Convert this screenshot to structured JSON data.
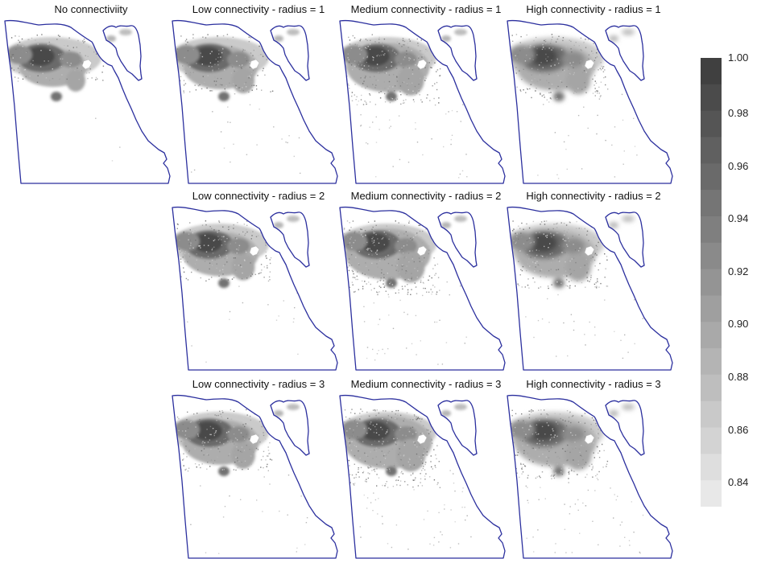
{
  "colors": {
    "outline": "#2b2f9e",
    "background": "#ffffff",
    "scale_high": "#404040",
    "scale_low": "#e6e6e6"
  },
  "panels": [
    {
      "id": "none",
      "title": "No connectiviity",
      "connectivity": "none",
      "radius": null
    },
    {
      "id": "low-r1",
      "title": "Low connectivity - radius = 1",
      "connectivity": "low",
      "radius": 1
    },
    {
      "id": "medium-r1",
      "title": "Medium connectivity - radius = 1",
      "connectivity": "medium",
      "radius": 1
    },
    {
      "id": "high-r1",
      "title": "High connectivity - radius = 1",
      "connectivity": "high",
      "radius": 1
    },
    {
      "id": "low-r2",
      "title": "Low connectivity - radius = 2",
      "connectivity": "low",
      "radius": 2
    },
    {
      "id": "medium-r2",
      "title": "Medium connectivity - radius = 2",
      "connectivity": "medium",
      "radius": 2
    },
    {
      "id": "high-r2",
      "title": "High connectivity - radius = 2",
      "connectivity": "high",
      "radius": 2
    },
    {
      "id": "low-r3",
      "title": "Low connectivity - radius = 3",
      "connectivity": "low",
      "radius": 3
    },
    {
      "id": "medium-r3",
      "title": "Medium connectivity - radius = 3",
      "connectivity": "medium",
      "radius": 3
    },
    {
      "id": "high-r3",
      "title": "High connectivity - radius = 3",
      "connectivity": "high",
      "radius": 3
    }
  ],
  "legend": {
    "min": 0.83,
    "max": 1.0,
    "steps": 17,
    "ticks": [
      "1.00",
      "0.98",
      "0.96",
      "0.94",
      "0.92",
      "0.90",
      "0.88",
      "0.86",
      "0.84"
    ]
  }
}
